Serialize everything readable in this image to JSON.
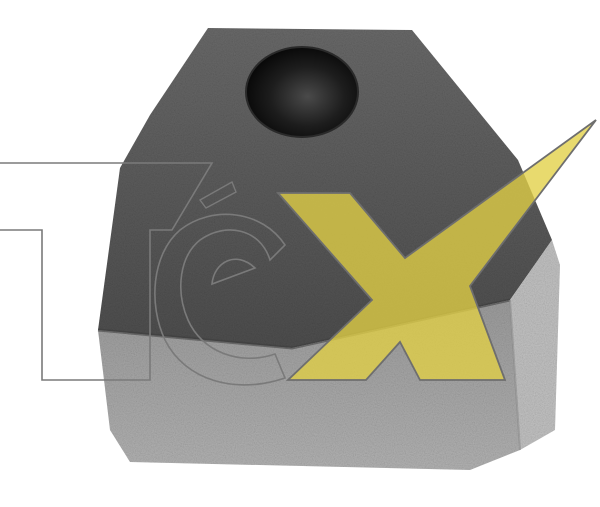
{
  "image": {
    "subject": "graphite-block-with-hole",
    "watermark_text": "téx",
    "colors": {
      "background": "#ffffff",
      "block_top_face": "#5b5b5b",
      "block_front_face": "#a9a9a9",
      "block_side_face": "#c4c4c4",
      "hole": "#0f0f0f",
      "logo_accent": "#d9c744",
      "logo_outline": "#6e6e6e"
    }
  }
}
